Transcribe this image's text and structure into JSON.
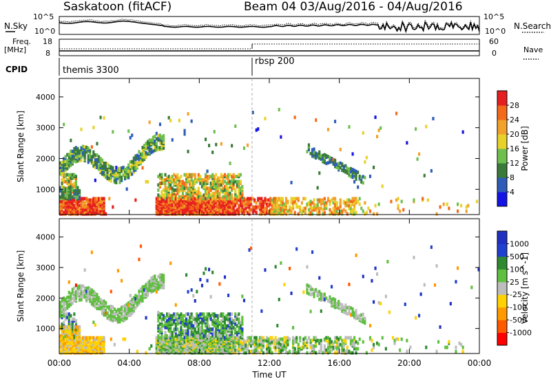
{
  "header": {
    "station": "Saskatoon (fitACF)",
    "beam_dates": "Beam 04 03/Aug/2016 - 04/Aug/2016"
  },
  "noise_panel": {
    "left_label": "N.Sky",
    "right_label": "N.Search",
    "left_ticks": [
      "10^5",
      "10^0"
    ],
    "right_ticks": [
      "10^5",
      "10^0"
    ]
  },
  "freq_panel": {
    "left_label_line1": "Freq.",
    "left_label_line2": "[MHz]",
    "right_label": "Nave",
    "left_ticks": [
      "18",
      "8"
    ],
    "right_ticks": [
      "60",
      "0"
    ]
  },
  "cpid_panel": {
    "label": "CPID",
    "segments": [
      {
        "name": "themis 3300",
        "start_hour": 0
      },
      {
        "name": "rbsp 200",
        "start_hour": 11
      }
    ]
  },
  "x_axis": {
    "label": "Time UT",
    "ticks": [
      "00:00",
      "04:00",
      "08:00",
      "12:00",
      "16:00",
      "20:00",
      "00:00"
    ],
    "range_hours": [
      0,
      24
    ]
  },
  "colors": {
    "power": [
      "#1414e6",
      "#2e5cb8",
      "#3a7a3a",
      "#6fbf4f",
      "#e8d22a",
      "#f2a12a",
      "#f26a1a",
      "#e62020"
    ],
    "velocity": [
      "#ff0000",
      "#ff5a00",
      "#ff9a00",
      "#ffd200",
      "#bdbdbd",
      "#5fbf3f",
      "#2f8a2f",
      "#2040d0",
      "#2030c0"
    ]
  },
  "chart_data": [
    {
      "type": "heatmap",
      "title": "",
      "xlabel": "",
      "ylabel": "Slant Range [km]",
      "xlim": [
        0,
        24
      ],
      "ylim": [
        180,
        4600
      ],
      "yticks": [
        1000,
        2000,
        3000,
        4000
      ],
      "colorbar_label": "Power [dB]",
      "colorbar_ticks": [
        "4",
        "8",
        "12",
        "16",
        "20",
        "24",
        "28"
      ],
      "colorbar_range": [
        0,
        30
      ]
    },
    {
      "type": "heatmap",
      "title": "",
      "xlabel": "Time UT",
      "ylabel": "Slant Range [km]",
      "xlim": [
        0,
        24
      ],
      "ylim": [
        180,
        4600
      ],
      "yticks": [
        1000,
        2000,
        3000,
        4000
      ],
      "colorbar_label": "Velocity [m s^-1]",
      "colorbar_ticks": [
        "-1000",
        "-500",
        "-100",
        "-25",
        "25",
        "100",
        "500",
        "1000"
      ]
    }
  ]
}
